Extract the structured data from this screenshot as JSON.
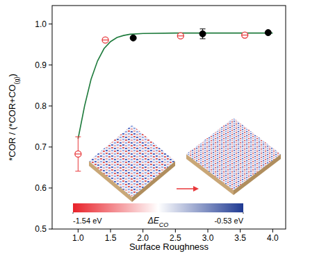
{
  "chart_data": {
    "type": "scatter",
    "xlabel": "Surface Roughness",
    "ylabel": [
      "*COR / (*COR+CO",
      "(g)",
      ")"
    ],
    "xlim": [
      0.6,
      4.2
    ],
    "ylim": [
      0.5,
      1.045
    ],
    "xticks": [
      {
        "value": 1,
        "label": "1.0"
      },
      1.5,
      {
        "value": 2,
        "label": "2.0"
      },
      2.5,
      {
        "value": 3,
        "label": "3.0"
      },
      3.5,
      {
        "value": 4,
        "label": "4.0"
      }
    ],
    "yticks": [
      0.5,
      0.6,
      0.7,
      0.8,
      0.9,
      {
        "value": 1,
        "label": "1.0"
      }
    ],
    "series": [
      {
        "type": "scatter",
        "color": "#e8373a",
        "marker": "open_circle",
        "x": [
          1.0,
          1.42,
          2.58,
          3.57
        ],
        "values": [
          0.683,
          0.961,
          0.971,
          0.973
        ],
        "errors": [
          0.042,
          null,
          null,
          null
        ]
      },
      {
        "type": "scatter",
        "color": "#000000",
        "marker": "filled_circle",
        "x": [
          1.85,
          2.92,
          3.93
        ],
        "values": [
          0.966,
          0.976,
          0.979
        ],
        "errors": [
          null,
          0.012,
          null
        ]
      },
      {
        "type": "line",
        "color": "#1e7b3c",
        "line_style": "solid",
        "x": [
          1.0,
          1.1,
          1.2,
          1.3,
          1.4,
          1.5,
          1.6,
          1.7,
          1.8,
          2.0,
          2.5,
          3.0,
          3.5,
          4.0
        ],
        "values": [
          0.72,
          0.8,
          0.865,
          0.91,
          0.94,
          0.957,
          0.967,
          0.972,
          0.975,
          0.977,
          0.978,
          0.978,
          0.978,
          0.978
        ]
      }
    ],
    "colorbar": {
      "label": [
        "ΔE",
        "CO"
      ],
      "range": [
        -1.54,
        -0.53
      ],
      "ticks": [
        {
          "value": -1.54,
          "label": "-1.54 eV"
        },
        {
          "value": -0.53,
          "label": "-0.53 eV"
        }
      ],
      "colors": [
        "#e8222a",
        "#ffffff",
        "#1f3a93"
      ]
    }
  }
}
